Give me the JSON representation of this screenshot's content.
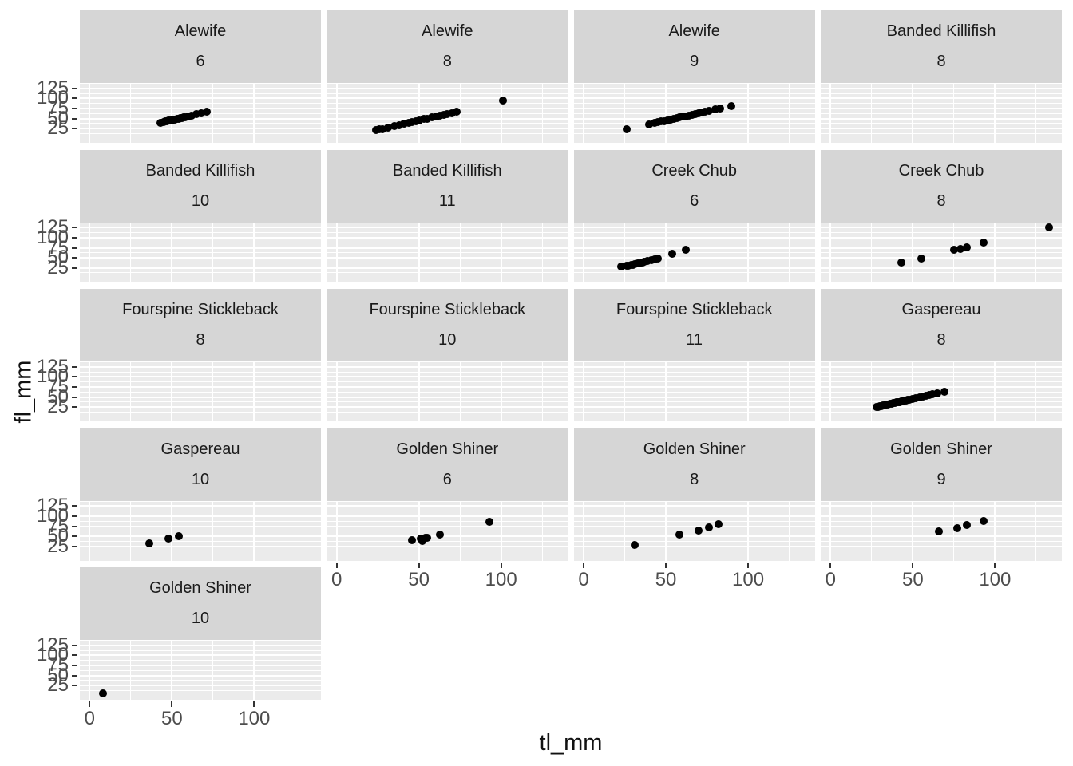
{
  "figure": {
    "x_axis_title": "tl_mm",
    "y_axis_title": "fl_mm",
    "x_ticks": [
      0,
      50,
      100
    ],
    "y_ticks": [
      125,
      100,
      75,
      50,
      25
    ],
    "x_minor_ticks": [
      25,
      75,
      125
    ],
    "x_range": [
      -6,
      140.6
    ],
    "y_range": [
      -12.8,
      138.9
    ],
    "grid": "on",
    "colors": {
      "background": "#FFFFFF",
      "panel_bg": "#EBEBEB",
      "strip_bg": "#D6D6D6",
      "gridline": "#FFFFFF",
      "point": "#000000",
      "tick_text": "#4D4D4D",
      "axis_title_text": "#111111",
      "strip_text": "#1A1A1A",
      "tick_mark": "#333333"
    }
  },
  "chart_data": {
    "type": "scatter",
    "title": "",
    "xlabel": "tl_mm",
    "ylabel": "fl_mm",
    "facet_vars": [
      "species",
      "month"
    ],
    "legend": "none",
    "facets": [
      {
        "species": "Alewife",
        "group": "6",
        "row": 0,
        "col": 0,
        "points": [
          [
            43,
            40
          ],
          [
            45,
            42
          ],
          [
            46,
            43
          ],
          [
            47,
            44
          ],
          [
            48,
            45
          ],
          [
            49,
            46
          ],
          [
            50,
            46
          ],
          [
            51,
            47
          ],
          [
            52,
            48
          ],
          [
            53,
            49
          ],
          [
            54,
            50
          ],
          [
            55,
            51
          ],
          [
            56,
            52
          ],
          [
            57,
            53
          ],
          [
            58,
            54
          ],
          [
            60,
            56
          ],
          [
            62,
            58
          ],
          [
            65,
            61
          ],
          [
            68,
            64
          ],
          [
            71,
            67
          ]
        ]
      },
      {
        "species": "Alewife",
        "group": "8",
        "row": 0,
        "col": 1,
        "points": [
          [
            24,
            21
          ],
          [
            26,
            23
          ],
          [
            28,
            24
          ],
          [
            31,
            27
          ],
          [
            35,
            31
          ],
          [
            38,
            34
          ],
          [
            41,
            37
          ],
          [
            44,
            40
          ],
          [
            46,
            42
          ],
          [
            48,
            44
          ],
          [
            50,
            46
          ],
          [
            53,
            49
          ],
          [
            55,
            50
          ],
          [
            58,
            53
          ],
          [
            61,
            56
          ],
          [
            63,
            58
          ],
          [
            65,
            60
          ],
          [
            67,
            61
          ],
          [
            70,
            64
          ],
          [
            73,
            67
          ],
          [
            101,
            95
          ]
        ]
      },
      {
        "species": "Alewife",
        "group": "9",
        "row": 0,
        "col": 2,
        "points": [
          [
            26,
            23
          ],
          [
            40,
            36
          ],
          [
            43,
            39
          ],
          [
            45,
            41
          ],
          [
            47,
            43
          ],
          [
            49,
            44
          ],
          [
            51,
            46
          ],
          [
            53,
            48
          ],
          [
            55,
            50
          ],
          [
            57,
            52
          ],
          [
            58,
            53
          ],
          [
            60,
            55
          ],
          [
            62,
            56
          ],
          [
            64,
            58
          ],
          [
            66,
            60
          ],
          [
            68,
            62
          ],
          [
            70,
            64
          ],
          [
            72,
            66
          ],
          [
            74,
            68
          ],
          [
            76,
            69
          ],
          [
            80,
            73
          ],
          [
            83,
            76
          ],
          [
            90,
            82
          ]
        ]
      },
      {
        "species": "Banded Killifish",
        "group": "8",
        "row": 0,
        "col": 3,
        "points": []
      },
      {
        "species": "Banded Killifish",
        "group": "10",
        "row": 1,
        "col": 0,
        "points": []
      },
      {
        "species": "Banded Killifish",
        "group": "11",
        "row": 1,
        "col": 1,
        "points": []
      },
      {
        "species": "Creek Chub",
        "group": "6",
        "row": 1,
        "col": 2,
        "points": [
          [
            23,
            28
          ],
          [
            26,
            30
          ],
          [
            27,
            31
          ],
          [
            29,
            32
          ],
          [
            30,
            33
          ],
          [
            31,
            34
          ],
          [
            33,
            36
          ],
          [
            34,
            37
          ],
          [
            36,
            39
          ],
          [
            37,
            40
          ],
          [
            39,
            42
          ],
          [
            41,
            44
          ],
          [
            43,
            46
          ],
          [
            45,
            48
          ],
          [
            54,
            60
          ],
          [
            62,
            70
          ]
        ]
      },
      {
        "species": "Creek Chub",
        "group": "8",
        "row": 1,
        "col": 3,
        "points": [
          [
            43,
            38
          ],
          [
            55,
            49
          ],
          [
            75,
            70
          ],
          [
            79,
            73
          ],
          [
            83,
            76
          ],
          [
            93,
            88
          ],
          [
            133,
            125
          ]
        ]
      },
      {
        "species": "Fourspine Stickleback",
        "group": "8",
        "row": 2,
        "col": 0,
        "points": []
      },
      {
        "species": "Fourspine Stickleback",
        "group": "10",
        "row": 2,
        "col": 1,
        "points": []
      },
      {
        "species": "Fourspine Stickleback",
        "group": "11",
        "row": 2,
        "col": 2,
        "points": []
      },
      {
        "species": "Gaspereau",
        "group": "8",
        "row": 2,
        "col": 3,
        "points": [
          [
            28,
            25
          ],
          [
            29,
            26
          ],
          [
            30,
            27
          ],
          [
            31,
            28
          ],
          [
            32,
            29
          ],
          [
            33,
            30
          ],
          [
            34,
            31
          ],
          [
            35,
            32
          ],
          [
            36,
            33
          ],
          [
            37,
            34
          ],
          [
            38,
            35
          ],
          [
            39,
            36
          ],
          [
            40,
            37
          ],
          [
            41,
            38
          ],
          [
            42,
            38
          ],
          [
            43,
            39
          ],
          [
            44,
            40
          ],
          [
            45,
            41
          ],
          [
            46,
            42
          ],
          [
            47,
            43
          ],
          [
            48,
            44
          ],
          [
            50,
            46
          ],
          [
            52,
            48
          ],
          [
            54,
            50
          ],
          [
            56,
            51
          ],
          [
            58,
            53
          ],
          [
            60,
            55
          ],
          [
            62,
            57
          ],
          [
            65,
            60
          ],
          [
            69,
            63
          ]
        ]
      },
      {
        "species": "Gaspereau",
        "group": "10",
        "row": 3,
        "col": 0,
        "points": [
          [
            36,
            33
          ],
          [
            48,
            45
          ],
          [
            54,
            51
          ]
        ]
      },
      {
        "species": "Golden Shiner",
        "group": "6",
        "row": 3,
        "col": 1,
        "points": [
          [
            46,
            40
          ],
          [
            51,
            45
          ],
          [
            52,
            39
          ],
          [
            54,
            46
          ],
          [
            55,
            47
          ],
          [
            63,
            54
          ],
          [
            93,
            87
          ]
        ]
      },
      {
        "species": "Golden Shiner",
        "group": "8",
        "row": 3,
        "col": 2,
        "points": [
          [
            31,
            29
          ],
          [
            58,
            54
          ],
          [
            70,
            65
          ],
          [
            76,
            73
          ],
          [
            82,
            80
          ]
        ]
      },
      {
        "species": "Golden Shiner",
        "group": "9",
        "row": 3,
        "col": 3,
        "points": [
          [
            66,
            62
          ],
          [
            77,
            71
          ],
          [
            83,
            78
          ],
          [
            93,
            88
          ]
        ]
      },
      {
        "species": "Golden Shiner",
        "group": "10",
        "row": 4,
        "col": 0,
        "points": [
          [
            8,
            6
          ]
        ]
      }
    ]
  }
}
